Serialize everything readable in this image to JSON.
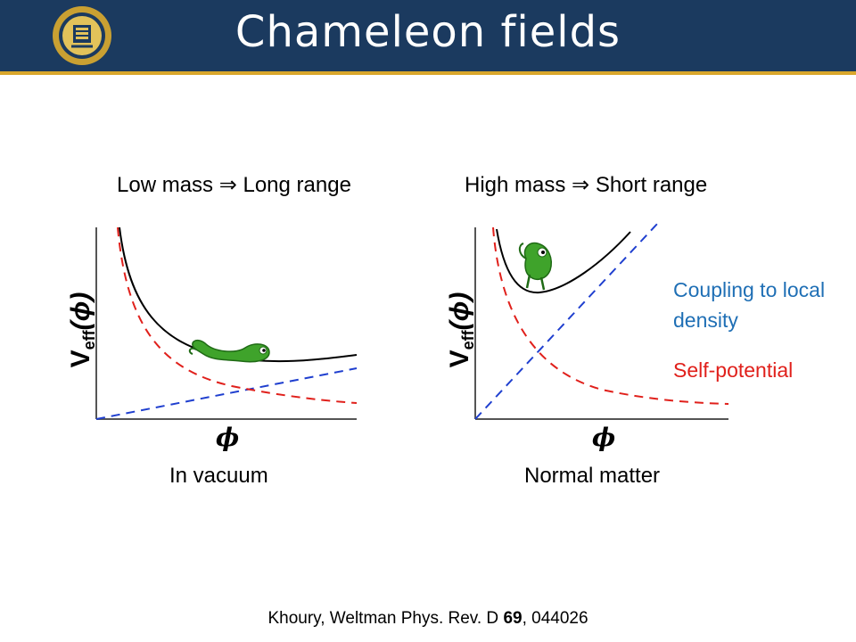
{
  "slide": {
    "title": "Chameleon fields",
    "citation": {
      "prefix": "Khoury, Weltman Phys. Rev. D ",
      "volume": "69",
      "suffix": ", 044026"
    }
  },
  "panels": [
    {
      "heading": "Low mass ⇒ Long range",
      "caption": "In vacuum",
      "y_axis_label": "V",
      "y_axis_subscript": "eff",
      "y_axis_arg": "(ϕ)",
      "x_axis_label": "ϕ"
    },
    {
      "heading": "High mass ⇒ Short range",
      "caption": "Normal matter",
      "y_axis_label": "V",
      "y_axis_subscript": "eff",
      "y_axis_arg": "(ϕ)",
      "x_axis_label": "ϕ"
    }
  ],
  "legend": {
    "coupling_label": "Coupling to local density",
    "self_potential_label": "Self-potential"
  },
  "colors": {
    "header_bg": "#1b3a5f",
    "header_rule": "#d9a72b",
    "coupling": "#1f6fb5",
    "self_potential": "#e0201b",
    "total": "#000000",
    "chameleon": "#3fa32b"
  },
  "icons": {
    "seal": "university-seal-icon",
    "chameleon": "chameleon-icon"
  }
}
